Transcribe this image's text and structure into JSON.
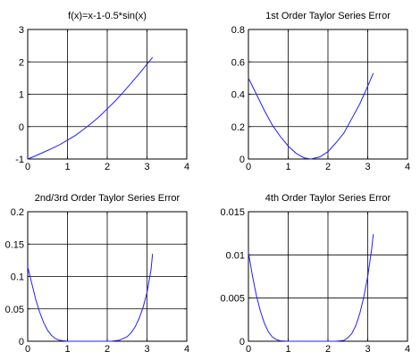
{
  "chart_data": [
    {
      "type": "line",
      "title": "f(x)=x-1-0.5*sin(x)",
      "xlabel": "",
      "ylabel": "",
      "xlim": [
        0,
        4
      ],
      "ylim": [
        -1,
        3
      ],
      "xticks": [
        0,
        1,
        2,
        3,
        4
      ],
      "yticks": [
        -1,
        0,
        1,
        2,
        3
      ],
      "xtick_labels": [
        "0",
        "1",
        "2",
        "3",
        "4"
      ],
      "ytick_labels": [
        "-1",
        "0",
        "1",
        "2",
        "3"
      ],
      "grid": true,
      "series": [
        {
          "color": "#1f1fff",
          "x": [
            0,
            0.2,
            0.4,
            0.6,
            0.8,
            1.0,
            1.2,
            1.4,
            1.6,
            1.8,
            2.0,
            2.2,
            2.4,
            2.6,
            2.8,
            3.0,
            3.14
          ],
          "y": [
            -1.0,
            -0.9,
            -0.79,
            -0.68,
            -0.56,
            -0.42,
            -0.27,
            -0.09,
            0.1,
            0.31,
            0.55,
            0.79,
            1.06,
            1.34,
            1.63,
            1.93,
            2.14
          ]
        }
      ]
    },
    {
      "type": "line",
      "title": "1st Order Taylor Series Error",
      "xlabel": "",
      "ylabel": "",
      "xlim": [
        0,
        4
      ],
      "ylim": [
        0,
        0.8
      ],
      "xticks": [
        0,
        1,
        2,
        3,
        4
      ],
      "yticks": [
        0,
        0.2,
        0.4,
        0.6,
        0.8
      ],
      "xtick_labels": [
        "0",
        "1",
        "2",
        "3",
        "4"
      ],
      "ytick_labels": [
        "0",
        "0.2",
        "0.4",
        "0.6",
        "0.8"
      ],
      "grid": true,
      "series": [
        {
          "color": "#1f1fff",
          "x": [
            0,
            0.2,
            0.4,
            0.6,
            0.8,
            1.0,
            1.2,
            1.4,
            1.57,
            1.8,
            2.0,
            2.2,
            2.4,
            2.6,
            2.8,
            3.0,
            3.14
          ],
          "y": [
            0.5,
            0.4,
            0.3,
            0.21,
            0.14,
            0.08,
            0.035,
            0.007,
            0.0,
            0.013,
            0.045,
            0.1,
            0.16,
            0.25,
            0.34,
            0.45,
            0.53
          ]
        }
      ]
    },
    {
      "type": "line",
      "title": "2nd/3rd Order Taylor Series Error",
      "xlabel": "",
      "ylabel": "",
      "xlim": [
        0,
        4
      ],
      "ylim": [
        0,
        0.2
      ],
      "xticks": [
        0,
        1,
        2,
        3,
        4
      ],
      "yticks": [
        0,
        0.05,
        0.1,
        0.15,
        0.2
      ],
      "xtick_labels": [
        "0",
        "1",
        "2",
        "3",
        "4"
      ],
      "ytick_labels": [
        "0",
        "0.05",
        "0.1",
        "0.15",
        "0.2"
      ],
      "grid": true,
      "series": [
        {
          "color": "#1f1fff",
          "x": [
            0,
            0.1,
            0.2,
            0.3,
            0.4,
            0.5,
            0.6,
            0.7,
            0.8,
            1.0,
            1.2,
            1.57,
            1.9,
            2.1,
            2.3,
            2.5,
            2.6,
            2.7,
            2.8,
            2.9,
            3.0,
            3.1,
            3.14
          ],
          "y": [
            0.115,
            0.09,
            0.065,
            0.045,
            0.029,
            0.017,
            0.009,
            0.004,
            0.0015,
            0.0,
            0.0,
            0.0,
            0.0,
            0.0,
            0.0015,
            0.007,
            0.013,
            0.022,
            0.035,
            0.052,
            0.075,
            0.11,
            0.135
          ]
        }
      ]
    },
    {
      "type": "line",
      "title": "4th Order Taylor Series Error",
      "xlabel": "",
      "ylabel": "",
      "xlim": [
        0,
        4
      ],
      "ylim": [
        0,
        0.015
      ],
      "xticks": [
        0,
        1,
        2,
        3,
        4
      ],
      "yticks": [
        0,
        0.005,
        0.01,
        0.015
      ],
      "xtick_labels": [
        "0",
        "1",
        "2",
        "3",
        "4"
      ],
      "ytick_labels": [
        "0",
        "0.005",
        "0.01",
        "0.015"
      ],
      "grid": true,
      "series": [
        {
          "color": "#1f1fff",
          "x": [
            0,
            0.1,
            0.2,
            0.3,
            0.4,
            0.5,
            0.6,
            0.7,
            0.8,
            1.0,
            1.3,
            1.57,
            1.9,
            2.2,
            2.4,
            2.5,
            2.6,
            2.7,
            2.8,
            2.9,
            3.0,
            3.1,
            3.14
          ],
          "y": [
            0.0103,
            0.0076,
            0.0053,
            0.0035,
            0.0021,
            0.0011,
            0.0005,
            0.0002,
            5e-05,
            0.0,
            0.0,
            0.0,
            0.0,
            0.0,
            0.0001,
            0.0004,
            0.0009,
            0.0018,
            0.0032,
            0.0051,
            0.0075,
            0.0107,
            0.0124
          ]
        }
      ]
    }
  ]
}
